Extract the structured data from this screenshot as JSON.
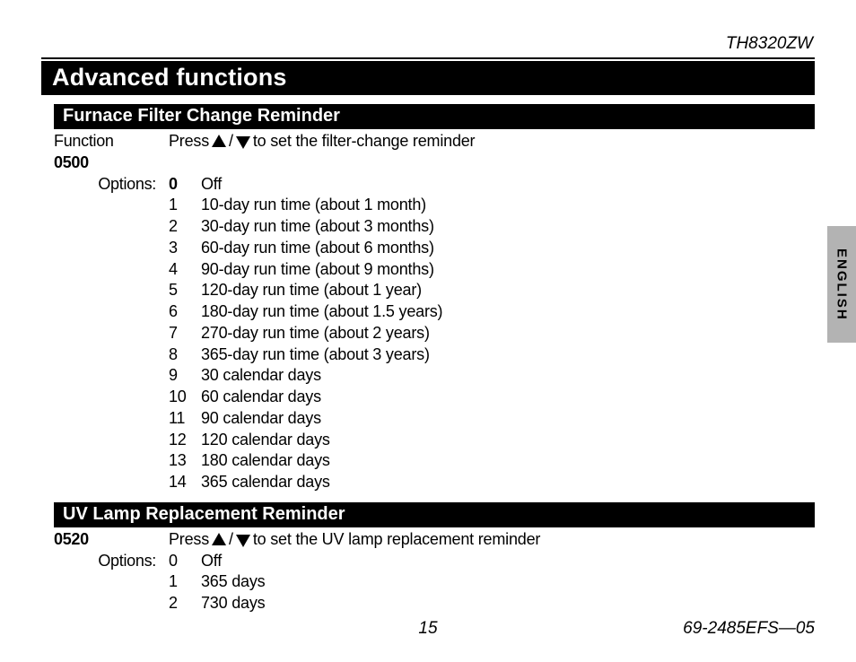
{
  "header": {
    "model": "TH8320ZW"
  },
  "title": "Advanced functions",
  "language_tab": "ENGLISH",
  "footer": {
    "page_number": "15",
    "doc_code": "69-2485EFS—05"
  },
  "sections": [
    {
      "heading": "Furnace Filter Change Reminder",
      "function_label": "Function",
      "function_code": "0500",
      "instruction_prefix": "Press",
      "instruction_suffix": "to set the filter-change reminder",
      "options_label": "Options:",
      "default_index": 0,
      "options": [
        {
          "n": "0",
          "t": "Off"
        },
        {
          "n": "1",
          "t": "10-day run time (about 1 month)"
        },
        {
          "n": "2",
          "t": "30-day run time (about 3 months)"
        },
        {
          "n": "3",
          "t": "60-day run time (about 6 months)"
        },
        {
          "n": "4",
          "t": "90-day run time (about 9 months)"
        },
        {
          "n": "5",
          "t": "120-day run time (about 1 year)"
        },
        {
          "n": "6",
          "t": "180-day run time (about 1.5 years)"
        },
        {
          "n": "7",
          "t": "270-day run time (about 2 years)"
        },
        {
          "n": "8",
          "t": "365-day run time (about 3 years)"
        },
        {
          "n": "9",
          "t": "30 calendar days"
        },
        {
          "n": "10",
          "t": "60 calendar days"
        },
        {
          "n": "11",
          "t": "90 calendar days"
        },
        {
          "n": "12",
          "t": "120 calendar days"
        },
        {
          "n": "13",
          "t": "180 calendar days"
        },
        {
          "n": "14",
          "t": "365 calendar days"
        }
      ]
    },
    {
      "heading": "UV Lamp Replacement Reminder",
      "function_label": "",
      "function_code": "0520",
      "instruction_prefix": "Press",
      "instruction_suffix": "to set the UV lamp replacement reminder",
      "options_label": "Options:",
      "default_index": -1,
      "options": [
        {
          "n": "0",
          "t": "Off"
        },
        {
          "n": "1",
          "t": "365 days"
        },
        {
          "n": "2",
          "t": "730 days"
        }
      ]
    }
  ]
}
